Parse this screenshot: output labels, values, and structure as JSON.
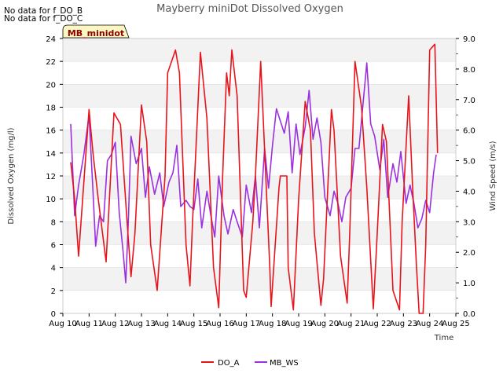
{
  "notes": [
    "No data for f_DO_B",
    "No data for f_DO_C"
  ],
  "chart_data": {
    "type": "line",
    "title": "Mayberry miniDot Dissolved Oxygen",
    "site_badge": "MB_minidot",
    "xlabel": "Time",
    "ylabel_left": "Dissolved Oxygen (mg/l)",
    "ylabel_right": "Wind Speed (m/s)",
    "x_ticks": [
      "Aug 10",
      "Aug 11",
      "Aug 12",
      "Aug 13",
      "Aug 14",
      "Aug 15",
      "Aug 16",
      "Aug 17",
      "Aug 18",
      "Aug 19",
      "Aug 20",
      "Aug 21",
      "Aug 22",
      "Aug 23",
      "Aug 24",
      "Aug 25"
    ],
    "xlim": [
      10,
      25
    ],
    "ylim_left": [
      0,
      24
    ],
    "ylim_right": [
      0,
      9
    ],
    "y_ticks_left": [
      "0",
      "2",
      "4",
      "6",
      "8",
      "10",
      "12",
      "14",
      "16",
      "18",
      "20",
      "22",
      "24"
    ],
    "y_ticks_right": [
      "0.0",
      "1.0",
      "2.0",
      "3.0",
      "4.0",
      "5.0",
      "6.0",
      "7.0",
      "8.0",
      "9.0"
    ],
    "grid": "horizontal bands",
    "legend_position": "bottom-center",
    "series": [
      {
        "name": "DO_A",
        "axis": "left",
        "color": "#e8141b",
        "x": [
          10.3,
          10.45,
          10.6,
          10.85,
          11.0,
          11.15,
          11.35,
          11.65,
          11.95,
          12.2,
          12.45,
          12.6,
          12.75,
          13.0,
          13.2,
          13.35,
          13.6,
          13.9,
          14.0,
          14.3,
          14.45,
          14.7,
          14.85,
          14.95,
          15.25,
          15.5,
          15.75,
          15.95,
          16.1,
          16.25,
          16.35,
          16.45,
          16.65,
          16.9,
          17.0,
          17.25,
          17.35,
          17.55,
          17.9,
          17.95,
          18.25,
          18.3,
          18.55,
          18.6,
          18.8,
          19.0,
          19.25,
          19.45,
          19.6,
          19.85,
          19.95,
          20.25,
          20.35,
          20.6,
          20.85,
          20.95,
          21.15,
          21.4,
          21.6,
          21.85,
          22.0,
          22.2,
          22.35,
          22.6,
          22.85,
          22.95,
          23.2,
          23.35,
          23.5,
          23.6,
          23.75,
          23.85,
          24.0,
          24.2,
          24.3
        ],
        "values": [
          13.2,
          10,
          5,
          13,
          17.8,
          14,
          10,
          4.5,
          17.5,
          16.5,
          8,
          3.2,
          7,
          18.2,
          15,
          6,
          2,
          12,
          21,
          23,
          21,
          6,
          2.4,
          8,
          22.8,
          17,
          4,
          0.5,
          12,
          21,
          19,
          23,
          19,
          2,
          1.4,
          8,
          12,
          22,
          4,
          0.6,
          11,
          12,
          12,
          4,
          0.3,
          10,
          18.5,
          16,
          7,
          0.7,
          3,
          17.8,
          16,
          5,
          0.9,
          7,
          22,
          18,
          11,
          0.4,
          7,
          16.5,
          15,
          2,
          0.3,
          8,
          19,
          11,
          4,
          0,
          0,
          6,
          23,
          23.5,
          14
        ]
      },
      {
        "name": "MB_WS",
        "axis": "right",
        "color": "#9b30e0",
        "x": [
          10.3,
          10.45,
          10.6,
          10.8,
          11.0,
          11.15,
          11.25,
          11.4,
          11.55,
          11.7,
          11.85,
          12.0,
          12.15,
          12.3,
          12.4,
          12.5,
          12.6,
          12.8,
          13.0,
          13.15,
          13.3,
          13.5,
          13.7,
          13.85,
          14.05,
          14.2,
          14.35,
          14.5,
          14.7,
          14.85,
          15.0,
          15.15,
          15.3,
          15.5,
          15.65,
          15.8,
          15.95,
          16.15,
          16.3,
          16.5,
          16.65,
          16.85,
          17.0,
          17.2,
          17.35,
          17.5,
          17.7,
          17.85,
          18.0,
          18.15,
          18.3,
          18.45,
          18.6,
          18.75,
          18.9,
          19.05,
          19.25,
          19.4,
          19.55,
          19.7,
          19.85,
          20.0,
          20.2,
          20.35,
          20.5,
          20.65,
          20.8,
          21.0,
          21.15,
          21.3,
          21.45,
          21.6,
          21.75,
          21.9,
          22.1,
          22.25,
          22.4,
          22.6,
          22.75,
          22.9,
          23.1,
          23.25,
          23.4,
          23.55,
          23.7,
          23.85,
          24.0,
          24.15,
          24.25
        ],
        "values": [
          6.2,
          3.2,
          4.2,
          5.2,
          6.5,
          4.0,
          2.2,
          3.2,
          3.0,
          5.0,
          5.2,
          5.6,
          3.3,
          2.0,
          1.0,
          3.0,
          5.8,
          4.9,
          5.4,
          3.8,
          4.8,
          3.9,
          4.6,
          3.5,
          4.3,
          4.6,
          5.5,
          3.5,
          3.7,
          3.5,
          3.4,
          4.4,
          2.8,
          4.0,
          3.2,
          2.5,
          4.5,
          3.2,
          2.6,
          3.4,
          3.0,
          2.5,
          4.2,
          3.3,
          4.5,
          2.8,
          5.4,
          4.1,
          5.5,
          6.7,
          6.3,
          5.9,
          6.6,
          4.6,
          6.2,
          5.2,
          6.1,
          7.3,
          5.7,
          6.4,
          5.6,
          3.8,
          3.2,
          4.0,
          3.6,
          3.0,
          3.8,
          4.1,
          5.4,
          5.4,
          6.8,
          8.2,
          6.2,
          5.8,
          4.7,
          5.7,
          3.8,
          4.9,
          4.3,
          5.3,
          3.6,
          4.2,
          3.6,
          2.8,
          3.1,
          3.7,
          3.3,
          4.6,
          5.2
        ]
      }
    ]
  }
}
